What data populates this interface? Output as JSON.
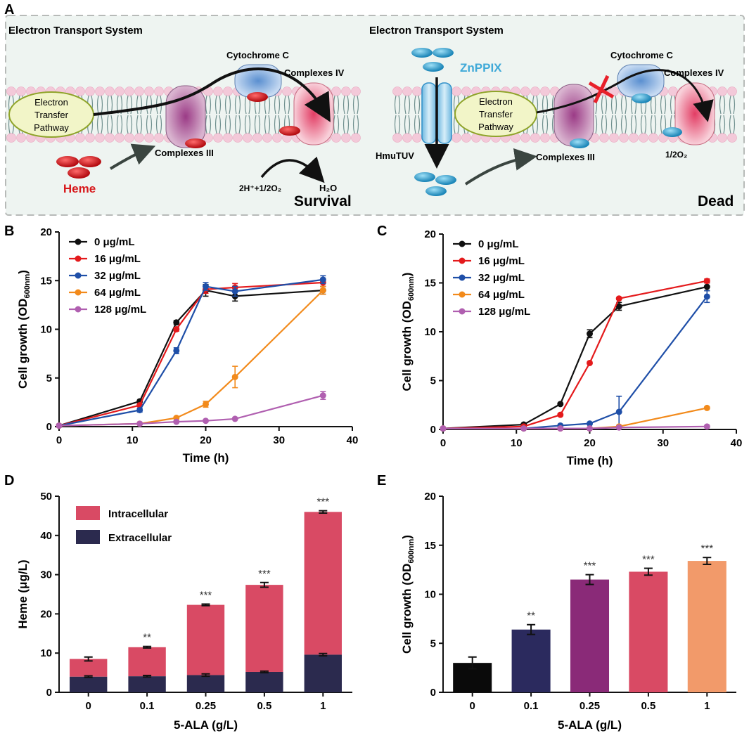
{
  "panel_letters": {
    "a": "A",
    "b": "B",
    "c": "C",
    "d": "D",
    "e": "E"
  },
  "schematic": {
    "left": {
      "title": "Electron Transport System",
      "pathway_lines": [
        "Electron",
        "Transfer",
        "Pathway"
      ],
      "cytochrome": "Cytochrome C",
      "complex4": "Complexes IV",
      "complex3": "Complexes III",
      "heme": "Heme",
      "reaction_reactant": "2H⁺+1/2O₂",
      "reaction_product": "H₂O",
      "outcome": "Survival"
    },
    "right": {
      "title": "Electron Transport System",
      "pathway_lines": [
        "Electron",
        "Transfer",
        "Pathway"
      ],
      "cytochrome": "Cytochrome C",
      "complex4": "Complexes IV",
      "complex3": "Complexes III",
      "inhibitor": "ZnPPIX",
      "transporter": "HmuTUV",
      "oxygen": "1/2O₂",
      "outcome": "Dead"
    },
    "colors": {
      "heme": "#d7191c",
      "znppix": "#3fa9d8",
      "block": "#e8202a",
      "panel_bg": "#eef4f1"
    }
  },
  "chart_data": [
    {
      "panel": "B",
      "type": "line",
      "xlabel": "Time (h)",
      "ylabel": "Cell growth (OD",
      "ylabel_sub": "600nm",
      "ylabel_end": ")",
      "xlim": [
        0,
        40
      ],
      "ylim": [
        0,
        20
      ],
      "xticks": [
        0,
        10,
        20,
        30,
        40
      ],
      "yticks": [
        0,
        5,
        10,
        15,
        20
      ],
      "x": [
        0,
        11,
        16,
        20,
        24,
        36
      ],
      "series": [
        {
          "name": "0 μg/mL",
          "color": "#111111",
          "values": [
            0.1,
            2.6,
            10.7,
            14.0,
            13.4,
            14.0
          ],
          "errors": [
            0,
            0.1,
            0.2,
            0.6,
            0.5,
            0.4
          ]
        },
        {
          "name": "16 μg/mL",
          "color": "#e41a1c",
          "values": [
            0.1,
            2.2,
            10.0,
            14.1,
            14.3,
            14.8
          ],
          "errors": [
            0,
            0.1,
            0.2,
            0.4,
            0.4,
            0.4
          ]
        },
        {
          "name": "32 μg/mL",
          "color": "#1f4fa8",
          "values": [
            0.1,
            1.7,
            7.8,
            14.4,
            13.9,
            15.1
          ],
          "errors": [
            0,
            0.2,
            0.3,
            0.4,
            0.5,
            0.4
          ]
        },
        {
          "name": "64 μg/mL",
          "color": "#f28a1b",
          "values": [
            0.1,
            0.3,
            0.9,
            2.3,
            5.1,
            14.0
          ],
          "errors": [
            0,
            0.05,
            0.1,
            0.3,
            1.1,
            0.4
          ]
        },
        {
          "name": "128 μg/mL",
          "color": "#b05fb0",
          "values": [
            0.1,
            0.3,
            0.5,
            0.6,
            0.8,
            3.2
          ],
          "errors": [
            0,
            0.05,
            0.05,
            0.05,
            0.1,
            0.4
          ]
        }
      ]
    },
    {
      "panel": "C",
      "type": "line",
      "xlabel": "Time (h)",
      "ylabel": "Cell growth (OD",
      "ylabel_sub": "600nm",
      "ylabel_end": ")",
      "xlim": [
        0,
        40
      ],
      "ylim": [
        0,
        20
      ],
      "xticks": [
        0,
        10,
        20,
        30,
        40
      ],
      "yticks": [
        0,
        5,
        10,
        15,
        20
      ],
      "x": [
        0,
        11,
        16,
        20,
        24,
        36
      ],
      "series": [
        {
          "name": "0 μg/mL",
          "color": "#111111",
          "values": [
            0.1,
            0.5,
            2.6,
            9.8,
            12.6,
            14.6
          ],
          "errors": [
            0,
            0.05,
            0.1,
            0.4,
            0.4,
            0.4
          ]
        },
        {
          "name": "16 μg/mL",
          "color": "#e41a1c",
          "values": [
            0.1,
            0.3,
            1.5,
            6.8,
            13.4,
            15.2
          ],
          "errors": [
            0,
            0.05,
            0.1,
            0.1,
            0.1,
            0.2
          ]
        },
        {
          "name": "32 μg/mL",
          "color": "#1f4fa8",
          "values": [
            0.1,
            0.1,
            0.4,
            0.6,
            1.8,
            13.6
          ],
          "errors": [
            0,
            0.05,
            0.05,
            0.1,
            1.6,
            0.6
          ]
        },
        {
          "name": "64 μg/mL",
          "color": "#f28a1b",
          "values": [
            0.1,
            0.1,
            0.1,
            0.1,
            0.3,
            2.2
          ],
          "errors": [
            0,
            0,
            0,
            0,
            0,
            0.1
          ]
        },
        {
          "name": "128 μg/mL",
          "color": "#b05fb0",
          "values": [
            0.1,
            0.1,
            0.1,
            0.1,
            0.2,
            0.3
          ],
          "errors": [
            0,
            0,
            0,
            0,
            0,
            0.05
          ]
        }
      ]
    },
    {
      "panel": "D",
      "type": "bar",
      "stacked": true,
      "xlabel": "5-ALA (g/L)",
      "ylabel": "Heme (μg/L)",
      "ylim": [
        0,
        50
      ],
      "yticks": [
        0,
        10,
        20,
        30,
        40,
        50
      ],
      "categories": [
        "0",
        "0.1",
        "0.25",
        "0.5",
        "1"
      ],
      "series": [
        {
          "name": "Extracellular",
          "color": "#2b2a4e",
          "values": [
            4.0,
            4.1,
            4.4,
            5.2,
            9.6
          ],
          "errors": [
            0.2,
            0.2,
            0.3,
            0.2,
            0.3
          ]
        },
        {
          "name": "Intracellular",
          "color": "#d94a64",
          "values": [
            4.5,
            7.4,
            17.9,
            22.2,
            36.4
          ],
          "errors": [
            0.5,
            0.2,
            0.2,
            0.6,
            0.3
          ]
        }
      ],
      "legend_order": [
        "Intracellular",
        "Extracellular"
      ],
      "significance": [
        "",
        "**",
        "***",
        "***",
        "***"
      ]
    },
    {
      "panel": "E",
      "type": "bar",
      "xlabel": "5-ALA (g/L)",
      "ylabel": "Cell growth (OD",
      "ylabel_sub": "600nm",
      "ylabel_end": ")",
      "ylim": [
        0,
        20
      ],
      "yticks": [
        0,
        5,
        10,
        15,
        20
      ],
      "categories": [
        "0",
        "0.1",
        "0.25",
        "0.5",
        "1"
      ],
      "values": [
        3.0,
        6.4,
        11.5,
        12.3,
        13.4
      ],
      "errors": [
        0.6,
        0.5,
        0.5,
        0.35,
        0.35
      ],
      "colors": [
        "#0a0a0a",
        "#2b2a5e",
        "#8a2a78",
        "#d94a64",
        "#f29a6a"
      ],
      "significance": [
        "",
        "**",
        "***",
        "***",
        "***"
      ]
    }
  ]
}
